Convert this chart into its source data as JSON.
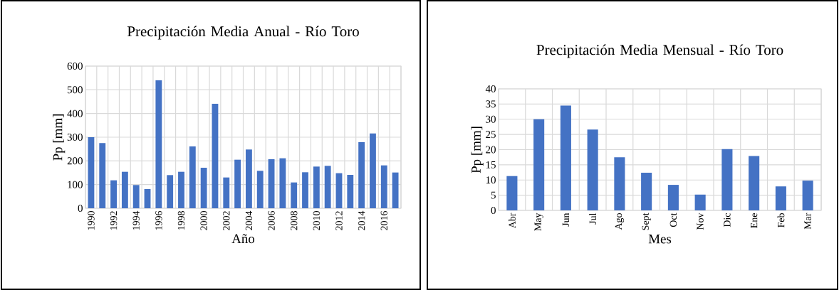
{
  "chart_data": [
    {
      "type": "bar",
      "title": "Precipitación Media Anual - Río Toro",
      "xlabel": "Año",
      "ylabel": "Pp [mm]",
      "categories": [
        "1990",
        null,
        "1992",
        null,
        "1994",
        null,
        "1996",
        null,
        "1998",
        null,
        "2000",
        null,
        "2002",
        null,
        "2004",
        null,
        "2006",
        null,
        "2008",
        null,
        "2010",
        null,
        "2012",
        null,
        "2014",
        null,
        "2016",
        null
      ],
      "values": [
        300,
        275,
        118,
        154,
        98,
        81,
        540,
        140,
        154,
        261,
        171,
        441,
        130,
        205,
        248,
        158,
        207,
        211,
        109,
        152,
        176,
        179,
        148,
        141,
        279,
        316,
        181,
        151
      ],
      "color": "#4472c4",
      "ylim": [
        0,
        600
      ],
      "yticks": [
        0,
        100,
        200,
        300,
        400,
        500,
        600
      ],
      "grid": true
    },
    {
      "type": "bar",
      "title": "Precipitación Media Mensual - Río Toro",
      "xlabel": "Mes",
      "ylabel": "Pp [mm]",
      "categories": [
        "Abr",
        "May",
        "Jun",
        "Jul",
        "Ago",
        "Sept",
        "Oct",
        "Nov",
        "Dic",
        "Ene",
        "Feb",
        "Mar"
      ],
      "values": [
        11.3,
        30.0,
        34.5,
        26.6,
        17.5,
        12.4,
        8.4,
        5.2,
        20.2,
        17.9,
        7.9,
        9.8
      ],
      "color": "#4472c4",
      "ylim": [
        0,
        40
      ],
      "yticks": [
        0,
        5,
        10,
        15,
        20,
        25,
        30,
        35,
        40
      ],
      "grid": true
    }
  ]
}
